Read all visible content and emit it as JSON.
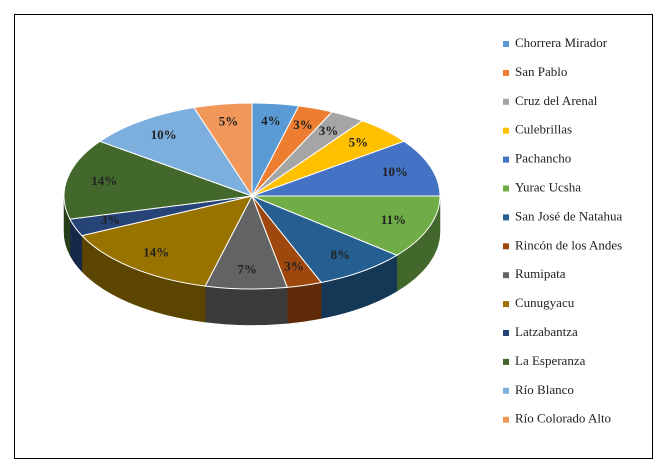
{
  "chart_data": {
    "type": "pie3d",
    "categories": [
      "Chorrera Mirador",
      "San Pablo",
      "Cruz del Arenal",
      "Culebrillas",
      "Pachancho",
      "Yurac Ucsha",
      "San José de Natahua",
      "Rincón de los Andes",
      "Rumipata",
      "Cunugyacu",
      "Latzabantza",
      "La Esperanza",
      "Río Blanco",
      "Río Colorado Alto"
    ],
    "values": [
      4,
      3,
      3,
      5,
      10,
      11,
      8,
      3,
      7,
      14,
      3,
      14,
      10,
      5
    ],
    "value_labels": [
      "4%",
      "3%",
      "3%",
      "5%",
      "10%",
      "11%",
      "8%",
      "3%",
      "7%",
      "14%",
      "3%",
      "14%",
      "10%",
      "5%"
    ],
    "colors": [
      "#5b9bd5",
      "#ed7d31",
      "#a5a5a5",
      "#ffc000",
      "#4472c4",
      "#70ad47",
      "#255e91",
      "#9e480e",
      "#636363",
      "#997300",
      "#264478",
      "#43682b",
      "#7cafdd",
      "#f1975a"
    ],
    "legend": "right"
  }
}
